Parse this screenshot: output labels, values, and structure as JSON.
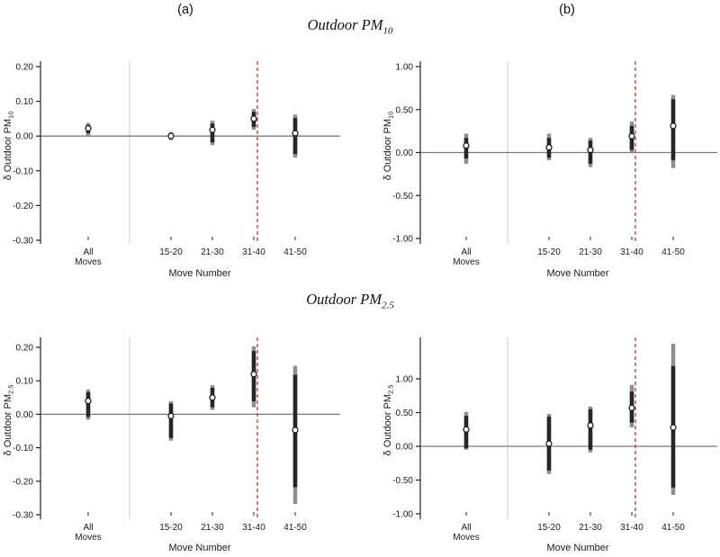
{
  "figure": {
    "panel_a": "(a)",
    "panel_b": "(b)",
    "titles": [
      {
        "main": "Outdoor PM",
        "sub": "10"
      },
      {
        "main": "Outdoor PM",
        "sub": "2.5"
      }
    ]
  },
  "colors": {
    "inner_ci": "#262626",
    "outer_ci": "#8f8f8f",
    "marker_fill": "#ffffff",
    "marker_stroke": "#111111",
    "zero_line": "#7a7a7a",
    "axis": "#222222",
    "divider": "#cfcfcf",
    "red_dashed": "#b04a4e",
    "text": "#1a1a1a"
  },
  "chart_data": [
    {
      "type": "scatter",
      "panel": "(a)",
      "row_title": "Outdoor PM10",
      "ylabel": {
        "prefix": "δ Outdoor PM",
        "sub": "10"
      },
      "xlabel": "Move Number",
      "categories": [
        "All Moves",
        "15-20",
        "21-30",
        "31-40",
        "41-50"
      ],
      "yticks": [
        {
          "value": 0.2,
          "label": "0.20"
        },
        {
          "value": 0.1,
          "label": "0.10"
        },
        {
          "value": 0.0,
          "label": "0.00"
        },
        {
          "value": -0.1,
          "label": "-0.10"
        },
        {
          "value": -0.2,
          "label": "-0.20"
        },
        {
          "value": -0.3,
          "label": "-0.30"
        }
      ],
      "ylim": [
        -0.31,
        0.22
      ],
      "zero_reference_line": 0,
      "divider_after_category": "All Moves",
      "red_dashed_line_near": "31-40",
      "points": [
        {
          "category": "All Moves",
          "estimate": 0.022,
          "inner_ci": [
            0.008,
            0.032
          ],
          "outer_ci": [
            0.002,
            0.038
          ]
        },
        {
          "category": "15-20",
          "estimate": 0.0,
          "inner_ci": [
            -0.008,
            0.008
          ],
          "outer_ci": [
            -0.012,
            0.012
          ]
        },
        {
          "category": "21-30",
          "estimate": 0.018,
          "inner_ci": [
            -0.018,
            0.036
          ],
          "outer_ci": [
            -0.026,
            0.044
          ]
        },
        {
          "category": "31-40",
          "estimate": 0.05,
          "inner_ci": [
            0.026,
            0.07
          ],
          "outer_ci": [
            0.018,
            0.078
          ]
        },
        {
          "category": "41-50",
          "estimate": 0.008,
          "inner_ci": [
            -0.052,
            0.052
          ],
          "outer_ci": [
            -0.062,
            0.062
          ]
        }
      ]
    },
    {
      "type": "scatter",
      "panel": "(b)",
      "row_title": "Outdoor PM10",
      "ylabel": {
        "prefix": "δ Outdoor PM",
        "sub": "10"
      },
      "xlabel": "Move Number",
      "categories": [
        "All Moves",
        "15-20",
        "21-30",
        "31-40",
        "41-50"
      ],
      "yticks": [
        {
          "value": 1.0,
          "label": "1.00"
        },
        {
          "value": 0.5,
          "label": "0.50"
        },
        {
          "value": 0.0,
          "label": "0.00"
        },
        {
          "value": -0.5,
          "label": "-0.50"
        },
        {
          "value": -1.0,
          "label": "-1.00"
        }
      ],
      "ylim": [
        -1.05,
        1.05
      ],
      "zero_reference_line": 0,
      "divider_after_category": "All Moves",
      "red_dashed_line_near": "31-40",
      "points": [
        {
          "category": "All Moves",
          "estimate": 0.08,
          "inner_ci": [
            -0.07,
            0.17
          ],
          "outer_ci": [
            -0.13,
            0.22
          ]
        },
        {
          "category": "15-20",
          "estimate": 0.06,
          "inner_ci": [
            -0.06,
            0.17
          ],
          "outer_ci": [
            -0.09,
            0.22
          ]
        },
        {
          "category": "21-30",
          "estimate": 0.03,
          "inner_ci": [
            -0.13,
            0.14
          ],
          "outer_ci": [
            -0.17,
            0.17
          ]
        },
        {
          "category": "31-40",
          "estimate": 0.19,
          "inner_ci": [
            0.03,
            0.31
          ],
          "outer_ci": [
            -0.01,
            0.36
          ]
        },
        {
          "category": "41-50",
          "estimate": 0.31,
          "inner_ci": [
            -0.09,
            0.62
          ],
          "outer_ci": [
            -0.18,
            0.67
          ]
        }
      ]
    },
    {
      "type": "scatter",
      "panel": "(a)",
      "row_title": "Outdoor PM2.5",
      "ylabel": {
        "prefix": "δ Outdoor PM",
        "sub": "2.5"
      },
      "xlabel": "Move Number",
      "categories": [
        "All Moves",
        "15-20",
        "21-30",
        "31-40",
        "41-50"
      ],
      "yticks": [
        {
          "value": 0.2,
          "label": "0.20"
        },
        {
          "value": 0.1,
          "label": "0.10"
        },
        {
          "value": 0.0,
          "label": "0.00"
        },
        {
          "value": -0.1,
          "label": "-0.10"
        },
        {
          "value": -0.2,
          "label": "-0.20"
        },
        {
          "value": -0.3,
          "label": "-0.30"
        }
      ],
      "ylim": [
        -0.31,
        0.22
      ],
      "zero_reference_line": 0,
      "divider_after_category": "All Moves",
      "red_dashed_line_near": "31-40",
      "points": [
        {
          "category": "All Moves",
          "estimate": 0.04,
          "inner_ci": [
            -0.008,
            0.066
          ],
          "outer_ci": [
            -0.016,
            0.074
          ]
        },
        {
          "category": "15-20",
          "estimate": -0.005,
          "inner_ci": [
            -0.071,
            0.032
          ],
          "outer_ci": [
            -0.079,
            0.039
          ]
        },
        {
          "category": "21-30",
          "estimate": 0.05,
          "inner_ci": [
            0.021,
            0.079
          ],
          "outer_ci": [
            0.013,
            0.087
          ]
        },
        {
          "category": "31-40",
          "estimate": 0.12,
          "inner_ci": [
            0.039,
            0.189
          ],
          "outer_ci": [
            0.021,
            0.203
          ]
        },
        {
          "category": "41-50",
          "estimate": -0.047,
          "inner_ci": [
            -0.218,
            0.118
          ],
          "outer_ci": [
            -0.268,
            0.145
          ]
        }
      ]
    },
    {
      "type": "scatter",
      "panel": "(b)",
      "row_title": "Outdoor PM2.5",
      "ylabel": {
        "prefix": "δ Outdoor PM",
        "sub": "2.5"
      },
      "xlabel": "Move Number",
      "categories": [
        "All Moves",
        "15-20",
        "21-30",
        "31-40",
        "41-50"
      ],
      "yticks": [
        {
          "value": 1.0,
          "label": "1.00"
        },
        {
          "value": 0.5,
          "label": "0.50"
        },
        {
          "value": 0.0,
          "label": "0.00"
        },
        {
          "value": -0.5,
          "label": "-0.50"
        },
        {
          "value": -1.0,
          "label": "-1.00"
        }
      ],
      "ylim": [
        -1.05,
        1.61
      ],
      "zero_reference_line": 0,
      "divider_after_category": "All Moves",
      "red_dashed_line_near": "31-40",
      "points": [
        {
          "category": "All Moves",
          "estimate": 0.25,
          "inner_ci": [
            -0.03,
            0.45
          ],
          "outer_ci": [
            -0.05,
            0.51
          ]
        },
        {
          "category": "15-20",
          "estimate": 0.04,
          "inner_ci": [
            -0.36,
            0.44
          ],
          "outer_ci": [
            -0.41,
            0.48
          ]
        },
        {
          "category": "21-30",
          "estimate": 0.31,
          "inner_ci": [
            -0.05,
            0.55
          ],
          "outer_ci": [
            -0.09,
            0.59
          ]
        },
        {
          "category": "31-40",
          "estimate": 0.57,
          "inner_ci": [
            0.35,
            0.81
          ],
          "outer_ci": [
            0.28,
            0.91
          ]
        },
        {
          "category": "41-50",
          "estimate": 0.28,
          "inner_ci": [
            -0.61,
            1.19
          ],
          "outer_ci": [
            -0.72,
            1.52
          ]
        }
      ]
    }
  ]
}
